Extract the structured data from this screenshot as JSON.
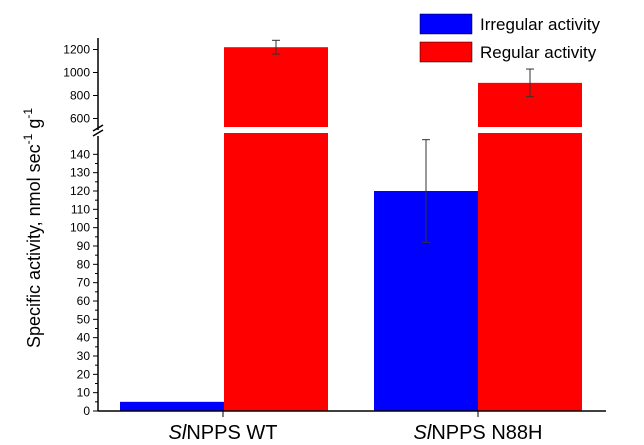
{
  "chart_data": {
    "type": "bar",
    "broken_axis": true,
    "categories": [
      {
        "prefix": "Sl",
        "rest": "NPPS WT"
      },
      {
        "prefix": "Sl",
        "rest": "NPPS N88H"
      }
    ],
    "series": [
      {
        "name": "Irregular activity",
        "color": "#0000ff",
        "values": [
          5,
          120
        ],
        "errors": [
          0,
          28
        ]
      },
      {
        "name": "Regular activity",
        "color": "#ff0000",
        "values": [
          1220,
          910
        ],
        "errors": [
          60,
          120
        ]
      }
    ],
    "ylabel": {
      "main": "Specific activity, nmol sec",
      "exp1": "-1",
      "mid": " g",
      "exp2": "-1"
    },
    "lower_axis": {
      "ylim": [
        0,
        150
      ],
      "ticks": [
        0,
        10,
        20,
        30,
        40,
        50,
        60,
        70,
        80,
        90,
        100,
        110,
        120,
        130,
        140
      ]
    },
    "upper_axis": {
      "ylim": [
        500,
        1300
      ],
      "ticks": [
        600,
        800,
        1000,
        1200
      ]
    },
    "legend_position": "top-right",
    "grid": false
  }
}
